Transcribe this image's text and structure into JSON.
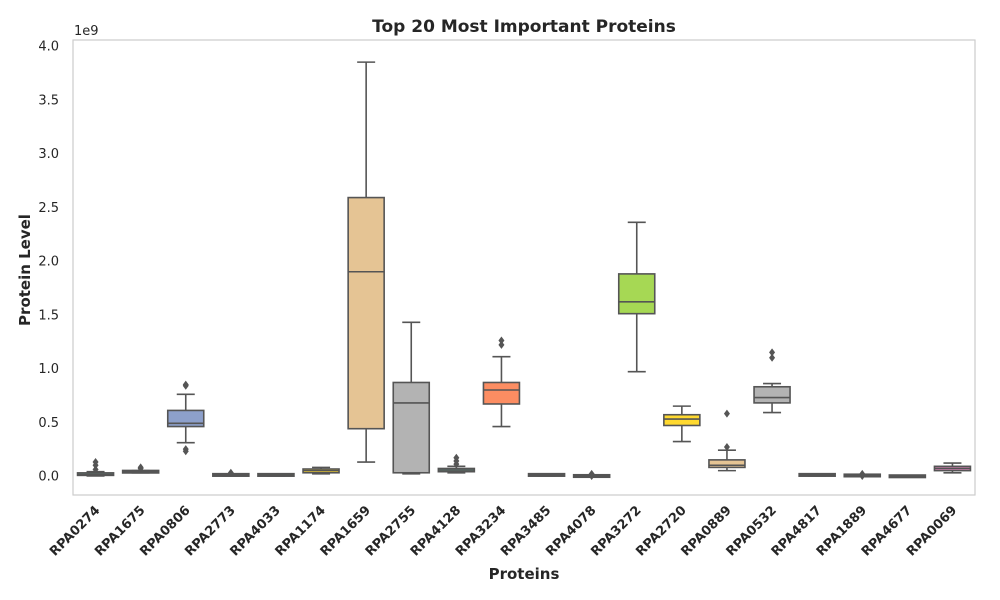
{
  "chart_data": {
    "type": "box",
    "title": "Top 20 Most Important Proteins",
    "xlabel": "Proteins",
    "ylabel": "Protein Level",
    "y_offset_label": "1e9",
    "y_unit_scale": 1000000000,
    "ylim": [
      -0.18,
      4.0
    ],
    "yticks": [
      "0.0",
      "0.5",
      "1.0",
      "1.5",
      "2.0",
      "2.5",
      "3.0",
      "3.5",
      "4.0"
    ],
    "grid": false,
    "legend": "none",
    "categories": [
      "RPA0274",
      "RPA1675",
      "RPA0806",
      "RPA2773",
      "RPA4033",
      "RPA1174",
      "RPA1659",
      "RPA2755",
      "RPA4128",
      "RPA3234",
      "RPA3485",
      "RPA4078",
      "RPA3272",
      "RPA2720",
      "RPA0889",
      "RPA0532",
      "RPA4817",
      "RPA1889",
      "RPA4677",
      "RPA0069"
    ],
    "colors": [
      "#66c2a5",
      "#fc8d62",
      "#8da0cb",
      "#e78ac3",
      "#a6d854",
      "#ffd92f",
      "#e5c494",
      "#b3b3b3",
      "#66c2a5",
      "#fc8d62",
      "#8da0cb",
      "#e78ac3",
      "#a6d854",
      "#ffd92f",
      "#e5c494",
      "#b3b3b3",
      "#66c2a5",
      "#fc8d62",
      "#8da0cb",
      "#e78ac3"
    ],
    "boxes": [
      {
        "min": 0.0,
        "q1": 0.01,
        "median": 0.015,
        "q3": 0.025,
        "max": 0.04,
        "outliers": [
          0.06,
          0.1,
          0.13
        ]
      },
      {
        "min": 0.03,
        "q1": 0.035,
        "median": 0.04,
        "q3": 0.045,
        "max": 0.05,
        "outliers": [
          0.07,
          0.08
        ]
      },
      {
        "min": 0.31,
        "q1": 0.46,
        "median": 0.49,
        "q3": 0.61,
        "max": 0.76,
        "outliers": [
          0.23,
          0.25,
          0.84,
          0.85
        ]
      },
      {
        "min": 0.0,
        "q1": 0.005,
        "median": 0.01,
        "q3": 0.015,
        "max": 0.02,
        "outliers": [
          0.03
        ]
      },
      {
        "min": 0.0,
        "q1": 0.005,
        "median": 0.01,
        "q3": 0.015,
        "max": 0.02,
        "outliers": []
      },
      {
        "min": 0.02,
        "q1": 0.03,
        "median": 0.05,
        "q3": 0.065,
        "max": 0.08,
        "outliers": []
      },
      {
        "min": 0.13,
        "q1": 0.44,
        "median": 1.9,
        "q3": 2.59,
        "max": 3.85,
        "outliers": []
      },
      {
        "min": 0.02,
        "q1": 0.03,
        "median": 0.68,
        "q3": 0.87,
        "max": 1.43,
        "outliers": []
      },
      {
        "min": 0.03,
        "q1": 0.04,
        "median": 0.055,
        "q3": 0.07,
        "max": 0.09,
        "outliers": [
          0.11,
          0.14,
          0.17
        ]
      },
      {
        "min": 0.46,
        "q1": 0.67,
        "median": 0.8,
        "q3": 0.87,
        "max": 1.11,
        "outliers": [
          1.22,
          1.26
        ]
      },
      {
        "min": 0.0,
        "q1": 0.005,
        "median": 0.01,
        "q3": 0.015,
        "max": 0.02,
        "outliers": []
      },
      {
        "min": -0.01,
        "q1": -0.005,
        "median": 0.0,
        "q3": 0.005,
        "max": 0.01,
        "outliers": [
          0.0,
          0.02
        ]
      },
      {
        "min": 0.97,
        "q1": 1.51,
        "median": 1.62,
        "q3": 1.88,
        "max": 2.36,
        "outliers": []
      },
      {
        "min": 0.32,
        "q1": 0.47,
        "median": 0.53,
        "q3": 0.57,
        "max": 0.65,
        "outliers": []
      },
      {
        "min": 0.05,
        "q1": 0.08,
        "median": 0.1,
        "q3": 0.15,
        "max": 0.24,
        "outliers": [
          0.27,
          0.58
        ]
      },
      {
        "min": 0.59,
        "q1": 0.68,
        "median": 0.73,
        "q3": 0.83,
        "max": 0.86,
        "outliers": [
          1.1,
          1.15
        ]
      },
      {
        "min": 0.0,
        "q1": 0.005,
        "median": 0.01,
        "q3": 0.015,
        "max": 0.02,
        "outliers": []
      },
      {
        "min": -0.005,
        "q1": 0.0,
        "median": 0.005,
        "q3": 0.01,
        "max": 0.015,
        "outliers": [
          0.0,
          0.02
        ]
      },
      {
        "min": -0.01,
        "q1": -0.005,
        "median": -0.003,
        "q3": 0.0,
        "max": 0.005,
        "outliers": []
      },
      {
        "min": 0.03,
        "q1": 0.05,
        "median": 0.07,
        "q3": 0.09,
        "max": 0.12,
        "outliers": []
      }
    ]
  }
}
